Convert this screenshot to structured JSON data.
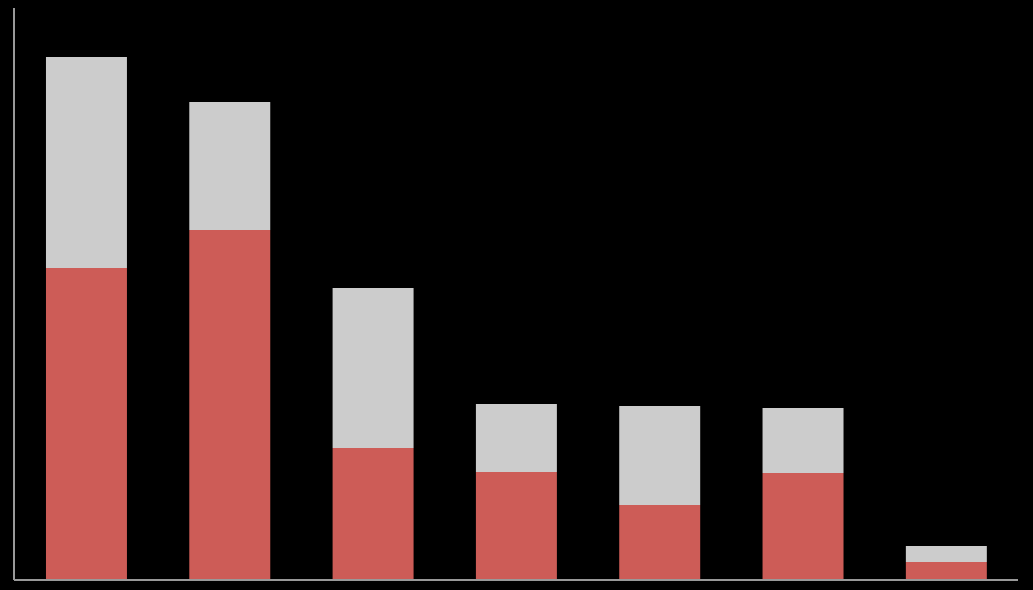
{
  "chart_data": {
    "type": "stacked-bar",
    "categories": [
      null,
      null,
      null,
      null,
      null,
      null,
      null
    ],
    "series": [
      {
        "color": "#cd5c57",
        "values": [
          312,
          350,
          132,
          108,
          75,
          107,
          18
        ]
      },
      {
        "color": "#cccccc",
        "values": [
          211,
          128,
          160,
          68,
          99,
          65,
          16
        ]
      }
    ],
    "ylim": [
      0,
      572
    ],
    "axis_color": "#999999"
  }
}
